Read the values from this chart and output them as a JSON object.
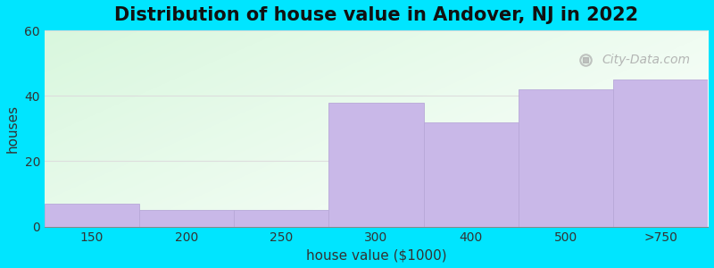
{
  "categories": [
    "150",
    "200",
    "250",
    "300",
    "400",
    "500",
    ">750"
  ],
  "values": [
    7,
    5,
    5,
    38,
    32,
    42,
    45
  ],
  "bar_color": "#c9b8e8",
  "bar_edge_color": "#b8a8d8",
  "title": "Distribution of house value in Andover, NJ in 2022",
  "xlabel": "house value ($1000)",
  "ylabel": "houses",
  "ylim": [
    0,
    60
  ],
  "yticks": [
    0,
    20,
    40,
    60
  ],
  "background_color": "#00e5ff",
  "title_fontsize": 15,
  "axis_label_fontsize": 11,
  "tick_fontsize": 10,
  "watermark_text": "City-Data.com",
  "grid_color": "#dddddd",
  "bar_widths": [
    1,
    1,
    1,
    1,
    1,
    1,
    1
  ],
  "bar_lefts": [
    0,
    1,
    2,
    3,
    4,
    5,
    6
  ]
}
